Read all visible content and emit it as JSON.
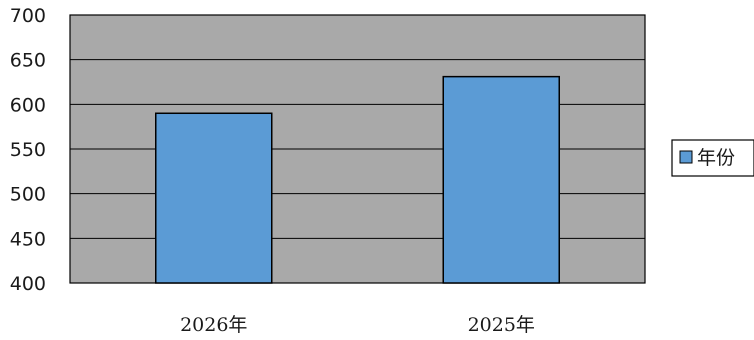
{
  "chart_data": {
    "type": "bar",
    "categories": [
      "2026年",
      "2025年"
    ],
    "series": [
      {
        "name": "年份",
        "values": [
          590,
          631
        ]
      }
    ],
    "ylim": [
      400,
      700
    ],
    "yticks": [
      400,
      450,
      500,
      550,
      600,
      650,
      700
    ],
    "grid": true,
    "legend_position": "right",
    "colors": {
      "plot_background": "#a9a9a9",
      "bar_fill": "#5b9bd5",
      "bar_stroke": "#000000",
      "gridline": "#000000",
      "legend_marker": "#5b9bd5"
    }
  }
}
